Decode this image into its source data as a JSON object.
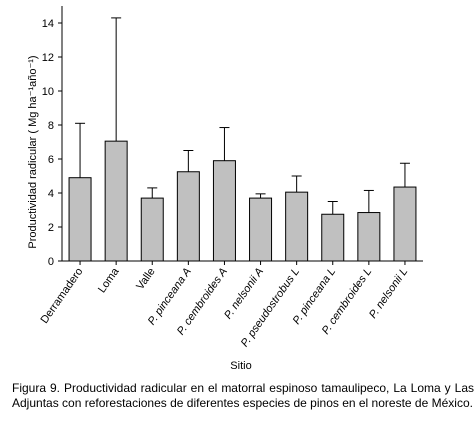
{
  "chart_data": {
    "type": "bar",
    "xlabel": "Sitio",
    "ylabel": "Productividad radicular ( Mg ha⁻¹año⁻¹)",
    "ylim": [
      0,
      15
    ],
    "yticks": [
      0,
      2,
      4,
      6,
      8,
      10,
      12,
      14
    ],
    "grid": false,
    "categories": [
      "Derramadero",
      "Loma",
      "Valle",
      "P. pinceana A",
      "P. cembroides A",
      "P. nelsonii A",
      "P. pseudostrobus L",
      "P. pinceana L",
      "P. cembroides L",
      "P. nelsonii L"
    ],
    "values": [
      4.9,
      7.05,
      3.7,
      5.25,
      5.9,
      3.7,
      4.05,
      2.75,
      2.85,
      4.35
    ],
    "error_upper": [
      8.1,
      14.3,
      4.3,
      6.5,
      7.85,
      3.95,
      5.0,
      3.5,
      4.15,
      5.75
    ],
    "bar_color": "#c0c0c0",
    "error_bars": "upper only"
  },
  "caption": "Figura 9. Productividad radicular en el matorral espinoso tamaulipeco, La Loma y Las Adjuntas con reforestaciones de diferentes especies de pinos en el noreste de México."
}
